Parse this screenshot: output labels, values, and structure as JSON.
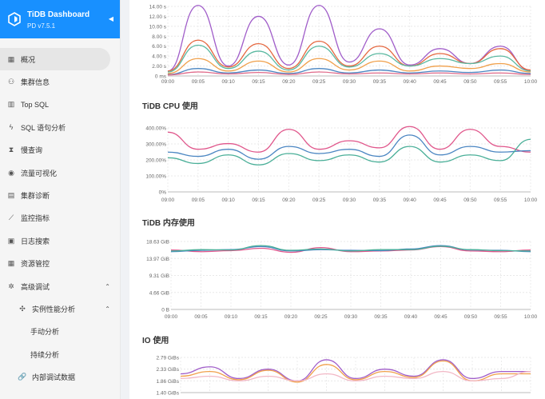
{
  "brand": {
    "title": "TiDB Dashboard",
    "version": "PD v7.5.1",
    "color": "#1890ff"
  },
  "menu": [
    {
      "label": "概况",
      "icon": "grid-icon",
      "selected": true
    },
    {
      "label": "集群信息",
      "icon": "cluster-icon"
    },
    {
      "label": "Top SQL",
      "icon": "bar-chart-icon"
    },
    {
      "label": "SQL 语句分析",
      "icon": "lightning-icon"
    },
    {
      "label": "慢查询",
      "icon": "hourglass-icon"
    },
    {
      "label": "流量可视化",
      "icon": "eye-icon"
    },
    {
      "label": "集群诊断",
      "icon": "document-icon"
    },
    {
      "label": "监控指标",
      "icon": "line-chart-icon"
    },
    {
      "label": "日志搜索",
      "icon": "log-icon"
    },
    {
      "label": "资源管控",
      "icon": "resource-icon"
    },
    {
      "label": "高级调试",
      "icon": "bug-icon",
      "expanded": true
    },
    {
      "label": "实例性能分析",
      "icon": "settings-icon",
      "expanded": true
    },
    {
      "label": "手动分析"
    },
    {
      "label": "持续分析"
    },
    {
      "label": "内部调试数据",
      "icon": "link-icon"
    }
  ],
  "x_ticks": [
    "09:00",
    "09:05",
    "09:10",
    "09:15",
    "09:20",
    "09:25",
    "09:30",
    "09:35",
    "09:40",
    "09:45",
    "09:50",
    "09:55",
    "10:00"
  ],
  "chart_data": [
    {
      "type": "line",
      "title": "",
      "yticks": [
        "14.00 s",
        "12.00 s",
        "10.00 s",
        "8.00 s",
        "6.00 s",
        "4.00 s",
        "2.00 s",
        "0 ms"
      ],
      "ylim": [
        0,
        14
      ],
      "x": [
        "09:00",
        "09:05",
        "09:10",
        "09:15",
        "09:20",
        "09:25",
        "09:30",
        "09:35",
        "09:40",
        "09:45",
        "09:50",
        "09:55",
        "10:00"
      ],
      "series": [
        {
          "color": "#a05dc9",
          "values": [
            1,
            14.2,
            2,
            12,
            2.2,
            14.2,
            2.8,
            9.5,
            2.2,
            5.5,
            2.5,
            6,
            1
          ]
        },
        {
          "color": "#e5673f",
          "values": [
            1,
            7.2,
            1.8,
            6.5,
            1.5,
            7,
            2,
            6,
            2,
            4.5,
            2.5,
            5.5,
            1.2
          ]
        },
        {
          "color": "#5ab8a0",
          "values": [
            0.8,
            6.2,
            1.5,
            5,
            1.2,
            6,
            1.8,
            4.5,
            2,
            3.5,
            2.5,
            4,
            1
          ]
        },
        {
          "color": "#f0a04b",
          "values": [
            0.5,
            3.5,
            1,
            3,
            0.8,
            3.5,
            1.2,
            3,
            1,
            2,
            1.5,
            2.5,
            0.8
          ]
        },
        {
          "color": "#4b86c2",
          "values": [
            0.3,
            1.5,
            0.6,
            1.2,
            0.5,
            1.5,
            0.6,
            1.2,
            0.6,
            1,
            0.7,
            1.2,
            0.5
          ]
        },
        {
          "color": "#e06a8a",
          "values": [
            0.2,
            0.8,
            0.4,
            0.7,
            0.3,
            0.8,
            0.4,
            0.6,
            0.4,
            0.6,
            0.4,
            0.6,
            0.3
          ]
        }
      ]
    },
    {
      "type": "line",
      "title": "TiDB CPU 使用",
      "yticks": [
        "400.00%",
        "300.00%",
        "200.00%",
        "100.00%",
        "0%"
      ],
      "ylim": [
        0,
        450
      ],
      "x": [
        "09:00",
        "09:05",
        "09:10",
        "09:15",
        "09:20",
        "09:25",
        "09:30",
        "09:35",
        "09:40",
        "09:45",
        "09:50",
        "09:55",
        "10:00"
      ],
      "series": [
        {
          "color": "#e0568b",
          "values": [
            420,
            300,
            340,
            280,
            440,
            300,
            360,
            310,
            460,
            300,
            440,
            320,
            280
          ]
        },
        {
          "color": "#4b86c2",
          "values": [
            280,
            250,
            300,
            230,
            320,
            270,
            300,
            250,
            400,
            260,
            320,
            280,
            290
          ]
        },
        {
          "color": "#4aaf98",
          "values": [
            240,
            200,
            260,
            190,
            270,
            220,
            260,
            210,
            320,
            210,
            260,
            220,
            370
          ]
        }
      ]
    },
    {
      "type": "line",
      "title": "TiDB 内存使用",
      "yticks": [
        "18.63 GiB",
        "13.97 GiB",
        "9.31 GiB",
        "4.66 GiB",
        "0 B"
      ],
      "ylim": [
        0,
        20
      ],
      "x": [
        "09:00",
        "09:05",
        "09:10",
        "09:15",
        "09:20",
        "09:25",
        "09:30",
        "09:35",
        "09:40",
        "09:45",
        "09:50",
        "09:55",
        "10:00"
      ],
      "series": [
        {
          "color": "#e0568b",
          "values": [
            17.5,
            17,
            17.3,
            18,
            16.8,
            18.2,
            17,
            17.2,
            17.5,
            18.5,
            17.2,
            17,
            17.5
          ]
        },
        {
          "color": "#4b86c2",
          "values": [
            17,
            17.4,
            17.6,
            18.5,
            17.2,
            17.6,
            17.4,
            17.3,
            17.8,
            18.8,
            17.5,
            17.4,
            17
          ]
        },
        {
          "color": "#4aaf98",
          "values": [
            17.2,
            17.6,
            17.5,
            18.8,
            17.4,
            17.8,
            17.2,
            17.6,
            17.6,
            18.6,
            17.6,
            17.3,
            17.2
          ]
        }
      ]
    },
    {
      "type": "line",
      "title": "IO 使用",
      "yticks": [
        "2.79 GiBs",
        "2.33 GiBs",
        "1.86 GiBs",
        "1.40 GiBs"
      ],
      "ylim": [
        1.4,
        2.9
      ],
      "x": [
        "09:00",
        "09:05",
        "09:10",
        "09:15",
        "09:20",
        "09:25",
        "09:30",
        "09:35",
        "09:40",
        "09:45",
        "09:50",
        "09:55",
        "10:00"
      ],
      "series": [
        {
          "color": "#a05dc9",
          "values": [
            2.2,
            2.5,
            2.0,
            2.4,
            1.9,
            2.8,
            2.0,
            2.4,
            2.1,
            2.8,
            2.0,
            2.3,
            2.3
          ]
        },
        {
          "color": "#f0a04b",
          "values": [
            2.1,
            2.3,
            1.95,
            2.35,
            1.85,
            2.6,
            1.95,
            2.3,
            2.05,
            2.75,
            1.9,
            2.2,
            2.2
          ]
        },
        {
          "color": "#f2b8c6",
          "values": [
            2.0,
            2.1,
            1.9,
            2.1,
            1.9,
            2.2,
            1.9,
            2.1,
            2.0,
            2.3,
            1.9,
            2.0,
            2.3
          ]
        }
      ]
    }
  ]
}
